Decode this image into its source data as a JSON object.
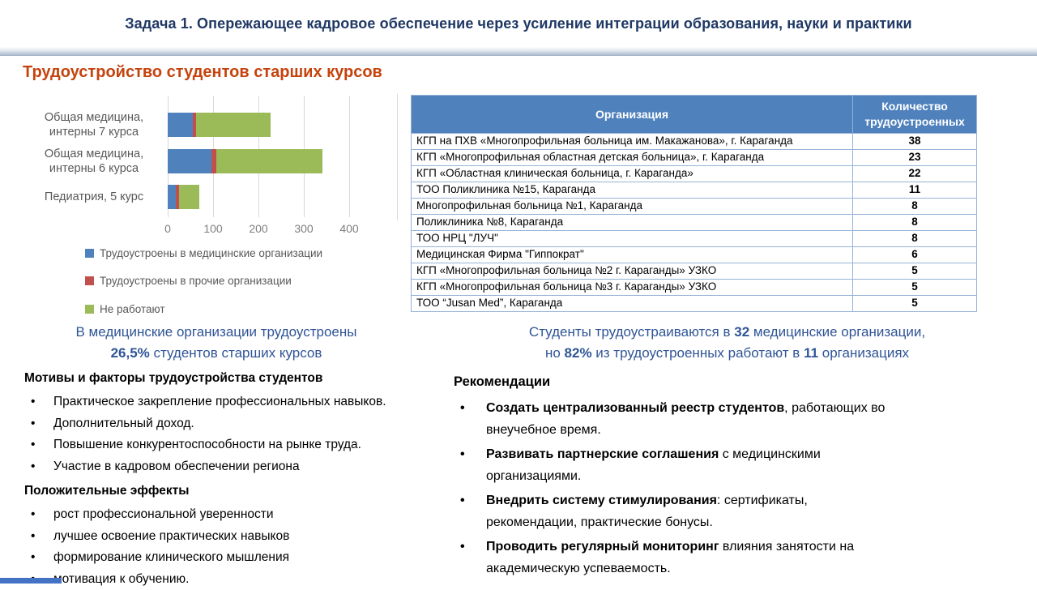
{
  "header": {
    "title": "Задача 1. Опережающее кадровое обеспечение через усиление интеграции образования, науки и практики"
  },
  "section_title": "Трудоустройство студентов старших курсов",
  "chart_data": {
    "type": "bar",
    "orientation": "horizontal",
    "stacked": true,
    "title": "",
    "categories": [
      "Общая медицина,\nинтерны 7 курса",
      "Общая медицина,\nинтерны 6 курса",
      "Педиатрия, 5 курс"
    ],
    "series": [
      {
        "name": "Трудоустроены в медицинские организации",
        "color": "#4F81BD",
        "values": [
          55,
          97,
          17
        ]
      },
      {
        "name": "Трудоустроены в прочие организации",
        "color": "#C0504D",
        "values": [
          8,
          10,
          8
        ]
      },
      {
        "name": "Не работают",
        "color": "#9BBB59",
        "values": [
          164,
          234,
          44
        ]
      }
    ],
    "xlim": [
      0,
      400
    ],
    "ticks": [
      0,
      100,
      200,
      300,
      400
    ],
    "grid": true,
    "legend_position": "bottom-left"
  },
  "table": {
    "headers": [
      "Организация",
      "Количество\nтрудоустроенных"
    ],
    "rows": [
      {
        "org": "КГП на ПХВ «Многопрофильная больница им. Макажанова», г. Караганда",
        "count": "38"
      },
      {
        "org": "КГП «Многопрофильная областная детская больница», г. Караганда",
        "count": "23"
      },
      {
        "org": "КГП «Областная клиническая больница, г. Караганда»",
        "count": "22"
      },
      {
        "org": "ТОО Поликлиника №15, Караганда",
        "count": "11"
      },
      {
        "org": "Многопрофильная больница №1, Караганда",
        "count": "8"
      },
      {
        "org": "Поликлиника №8, Караганда",
        "count": "8"
      },
      {
        "org": "ТОО НРЦ \"ЛУЧ\"",
        "count": "8"
      },
      {
        "org": "Медицинская Фирма \"Гиппократ\"",
        "count": "6"
      },
      {
        "org": "КГП «Многопрофильная больница №2 г. Караганды» УЗКО",
        "count": "5"
      },
      {
        "org": "КГП «Многопрофильная больница №3 г. Караганды» УЗКО",
        "count": "5"
      },
      {
        "org": "ТОО “Jusan Med”, Караганда",
        "count": "5"
      }
    ]
  },
  "stat_left": {
    "parts": [
      {
        "text": "В медицинские организации трудоустроены\n",
        "bold": false
      },
      {
        "text": "26,5%",
        "bold": true
      },
      {
        "text": " студентов старших курсов",
        "bold": false
      }
    ]
  },
  "stat_right": {
    "parts": [
      {
        "text": "Студенты трудоустраиваются в ",
        "bold": false
      },
      {
        "text": "32",
        "bold": true
      },
      {
        "text": " медицинские организации,\nно ",
        "bold": false
      },
      {
        "text": "82%",
        "bold": true
      },
      {
        "text": " из трудоустроенных работают в ",
        "bold": false
      },
      {
        "text": "11",
        "bold": true
      },
      {
        "text": " организациях",
        "bold": false
      }
    ]
  },
  "left_sections": [
    {
      "heading": "Мотивы и факторы трудоустройства студентов",
      "items": [
        "Практическое закрепление профессиональных навыков.",
        "Дополнительный доход.",
        "Повышение конкурентоспособности на рынке труда.",
        "Участие в кадровом обеспечении региона"
      ]
    },
    {
      "heading": "Положительные эффекты",
      "items": [
        "рост профессиональной уверенности",
        "лучшее освоение практических навыков",
        "формирование клинического мышления",
        "мотивация к обучению."
      ]
    }
  ],
  "recommendations": {
    "heading": "Рекомендации",
    "items": [
      {
        "bold": "Создать централизованный реестр студентов",
        "rest": ", работающих во\nвнеучебное время."
      },
      {
        "bold": "Развивать партнерские соглашения",
        "rest": " с медицинскими\nорганизациями."
      },
      {
        "bold": "Внедрить систему стимулирования",
        "rest": ": сертификаты,\nрекомендации, практические бонусы."
      },
      {
        "bold": "Проводить регулярный мониторинг",
        "rest": " влияния занятости на\nакадемическую успеваемость."
      }
    ]
  },
  "colors": {
    "header_text": "#1F3864",
    "section_title_text": "#C5430D",
    "statement_text": "#2F5496",
    "table_header_bg": "#4F81BD",
    "table_border": "#95B3D7",
    "bar_blue": "#4F81BD",
    "bar_red": "#C0504D",
    "bar_green": "#9BBB59",
    "corner_accent": "#4472C4"
  }
}
